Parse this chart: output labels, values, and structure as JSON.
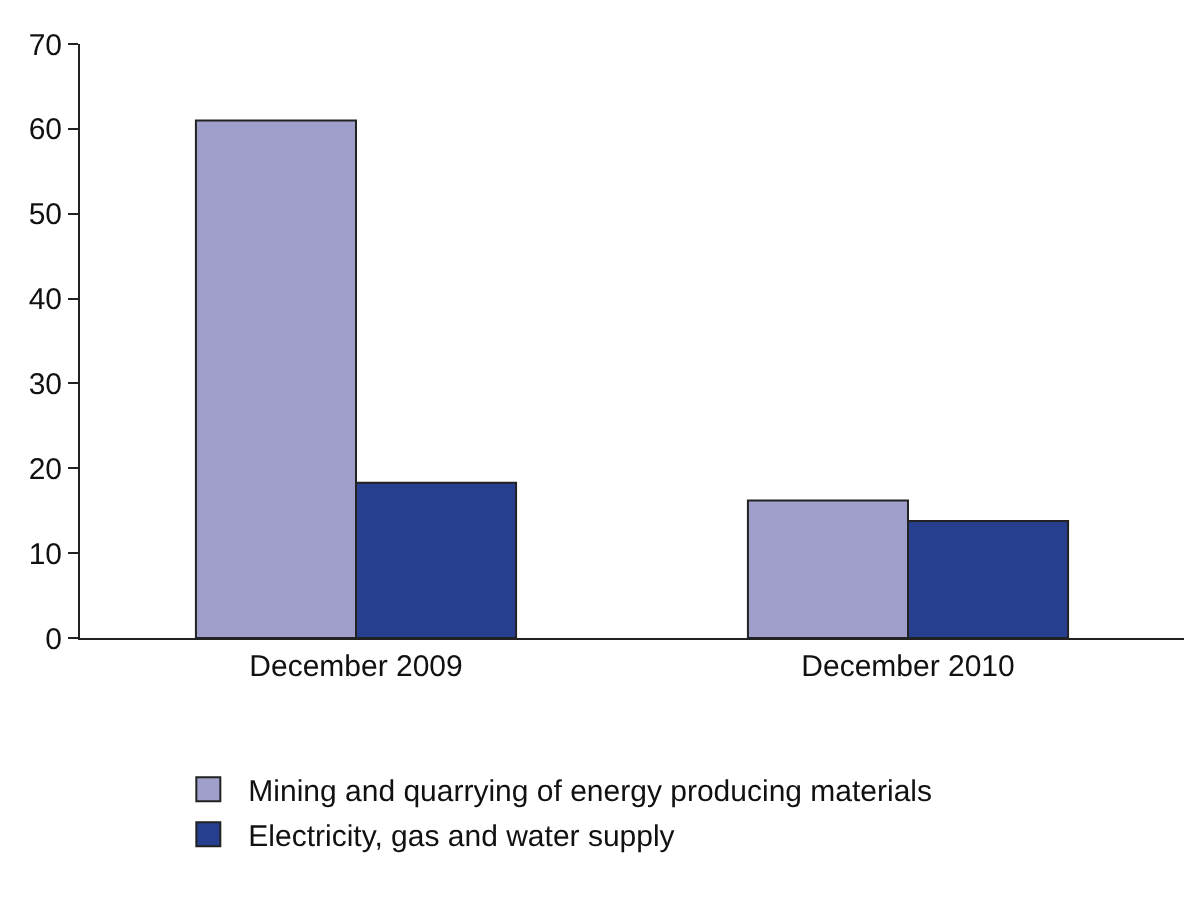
{
  "chart_data": {
    "type": "bar",
    "categories": [
      "December 2009",
      "December 2010"
    ],
    "series": [
      {
        "name": "Mining and quarrying of energy producing materials",
        "color": "#a09fcb",
        "values": [
          61,
          16.2
        ]
      },
      {
        "name": "Electricity, gas and water supply",
        "color": "#263f8f",
        "values": [
          18.3,
          13.8
        ]
      }
    ],
    "ylim": [
      0,
      70
    ],
    "yticks": [
      0,
      10,
      20,
      30,
      40,
      50,
      60,
      70
    ],
    "grid": false,
    "legend": "bottom"
  }
}
